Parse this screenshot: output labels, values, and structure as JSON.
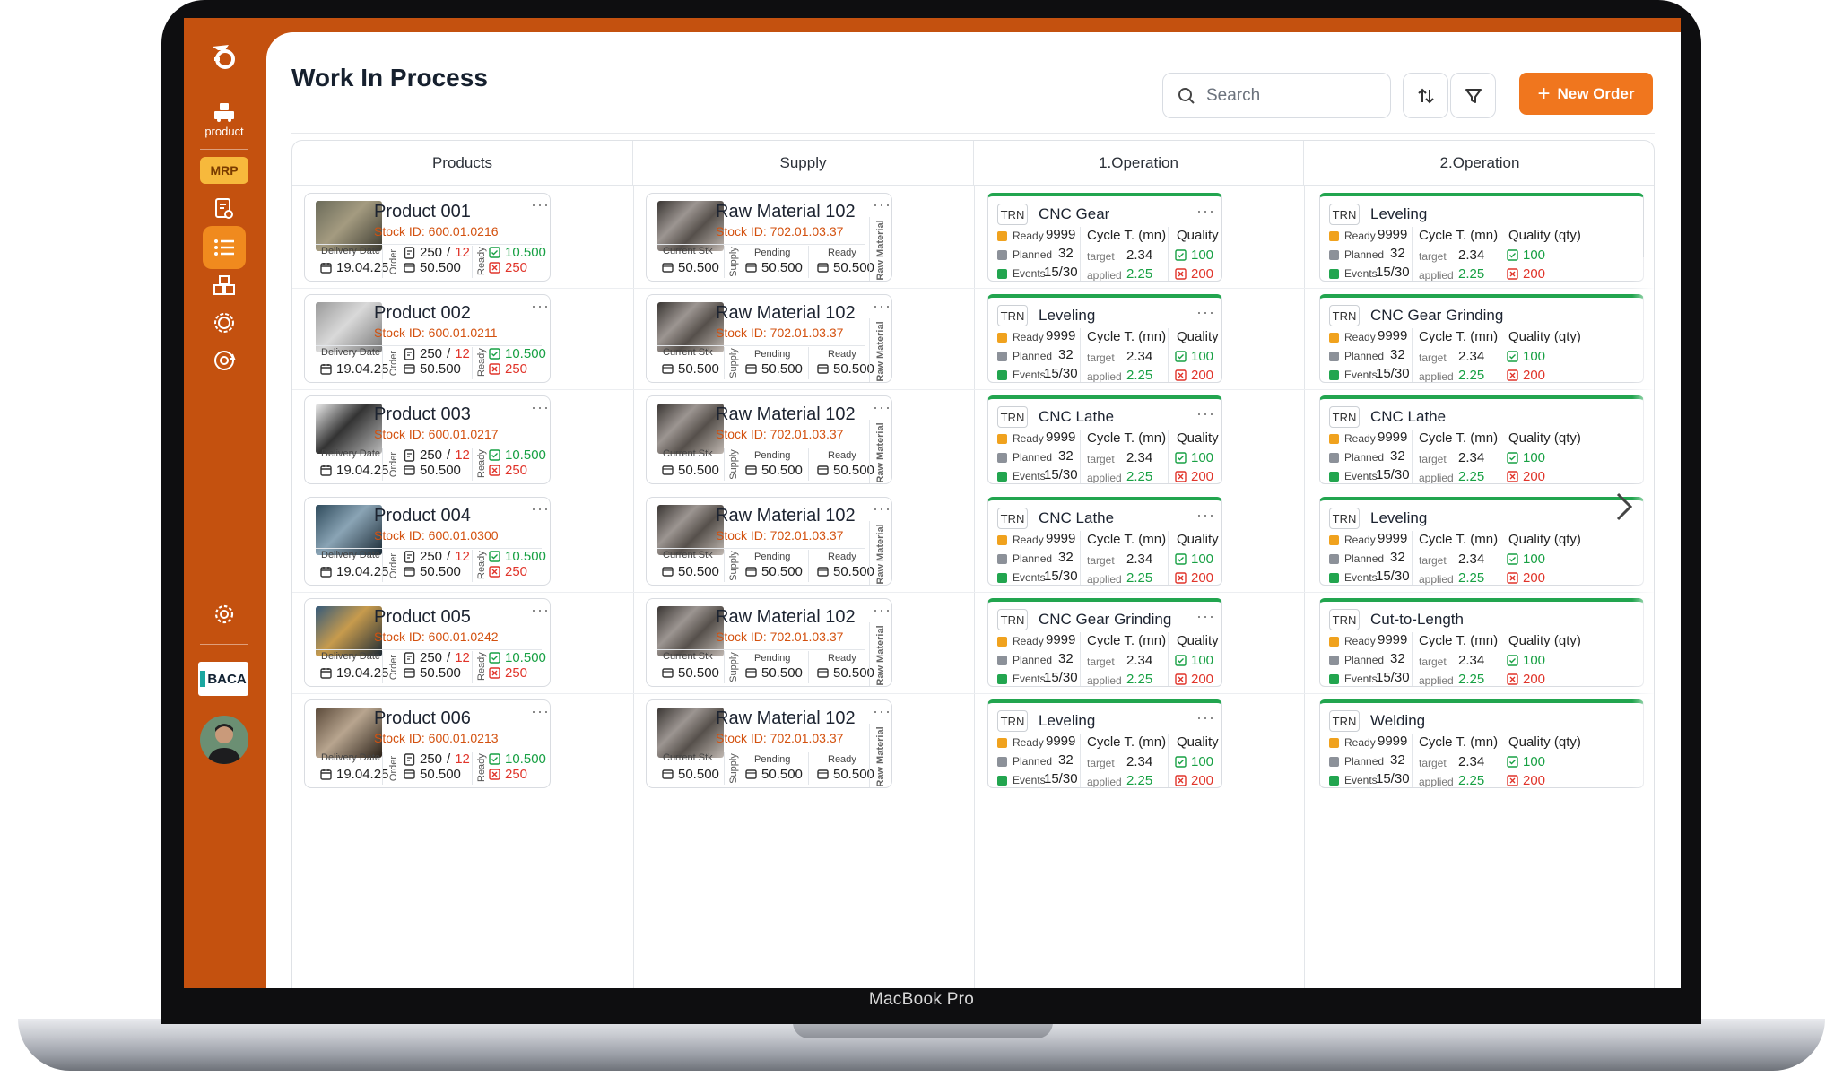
{
  "device_label": "MacBook Pro",
  "page": {
    "title": "Work In Process"
  },
  "search": {
    "placeholder": "Search"
  },
  "toolbar": {
    "new_order_label": "New Order"
  },
  "sidebar": {
    "product_label": "product",
    "mrp_label": "MRP",
    "company_logo_text": "BACA"
  },
  "columns": [
    "Products",
    "Supply",
    "1.Operation",
    "2.Operation"
  ],
  "field_labels": {
    "delivery_date": "Delivery Date",
    "order": "Order",
    "ready": "Ready",
    "current_stk": "Current Stk",
    "supply": "Supply",
    "pending": "Pending",
    "raw_material": "Raw Material",
    "trn": "TRN",
    "st_ready": "Ready",
    "st_planned": "Planned",
    "st_events": "Events",
    "cycle_t": "Cycle T. (mn)",
    "quality": "Quality (qty)",
    "target": "target",
    "applied": "applied",
    "more": "···"
  },
  "rows": [
    {
      "product": {
        "name": "Product 001",
        "stock_id": "Stock ID: 600.01.0216",
        "delivery_date": "19.04.25",
        "order_done": "250",
        "order_total": "12",
        "order_qty": "50.500",
        "ready_good": "10.500",
        "ready_bad": "250"
      },
      "supply": {
        "name": "Raw Material 102",
        "stock_id": "Stock ID: 702.01.03.37",
        "current": "50.500",
        "pending": "50.500",
        "ready": "50.500"
      },
      "ops": [
        {
          "name": "CNC Gear",
          "ready": "9999",
          "planned": "32",
          "events": "15/30",
          "target": "2.34",
          "applied": "2.25",
          "q_good": "100",
          "q_bad": "200"
        },
        {
          "name": "Leveling",
          "ready": "9999",
          "planned": "32",
          "events": "15/30",
          "target": "2.34",
          "applied": "2.25",
          "q_good": "100",
          "q_bad": "200"
        }
      ]
    },
    {
      "product": {
        "name": "Product 002",
        "stock_id": "Stock ID: 600.01.0211",
        "delivery_date": "19.04.25",
        "order_done": "250",
        "order_total": "12",
        "order_qty": "50.500",
        "ready_good": "10.500",
        "ready_bad": "250"
      },
      "supply": {
        "name": "Raw Material 102",
        "stock_id": "Stock ID: 702.01.03.37",
        "current": "50.500",
        "pending": "50.500",
        "ready": "50.500"
      },
      "ops": [
        {
          "name": "Leveling",
          "ready": "9999",
          "planned": "32",
          "events": "15/30",
          "target": "2.34",
          "applied": "2.25",
          "q_good": "100",
          "q_bad": "200"
        },
        {
          "name": "CNC Gear Grinding",
          "ready": "9999",
          "planned": "32",
          "events": "15/30",
          "target": "2.34",
          "applied": "2.25",
          "q_good": "100",
          "q_bad": "200"
        }
      ]
    },
    {
      "product": {
        "name": "Product 003",
        "stock_id": "Stock ID: 600.01.0217",
        "delivery_date": "19.04.25",
        "order_done": "250",
        "order_total": "12",
        "order_qty": "50.500",
        "ready_good": "10.500",
        "ready_bad": "250"
      },
      "supply": {
        "name": "Raw Material 102",
        "stock_id": "Stock ID: 702.01.03.37",
        "current": "50.500",
        "pending": "50.500",
        "ready": "50.500"
      },
      "ops": [
        {
          "name": "CNC Lathe",
          "ready": "9999",
          "planned": "32",
          "events": "15/30",
          "target": "2.34",
          "applied": "2.25",
          "q_good": "100",
          "q_bad": "200"
        },
        {
          "name": "CNC Lathe",
          "ready": "9999",
          "planned": "32",
          "events": "15/30",
          "target": "2.34",
          "applied": "2.25",
          "q_good": "100",
          "q_bad": "200"
        }
      ]
    },
    {
      "product": {
        "name": "Product 004",
        "stock_id": "Stock ID: 600.01.0300",
        "delivery_date": "19.04.25",
        "order_done": "250",
        "order_total": "12",
        "order_qty": "50.500",
        "ready_good": "10.500",
        "ready_bad": "250"
      },
      "supply": {
        "name": "Raw Material 102",
        "stock_id": "Stock ID: 702.01.03.37",
        "current": "50.500",
        "pending": "50.500",
        "ready": "50.500"
      },
      "ops": [
        {
          "name": "CNC Lathe",
          "ready": "9999",
          "planned": "32",
          "events": "15/30",
          "target": "2.34",
          "applied": "2.25",
          "q_good": "100",
          "q_bad": "200"
        },
        {
          "name": "Leveling",
          "ready": "9999",
          "planned": "32",
          "events": "15/30",
          "target": "2.34",
          "applied": "2.25",
          "q_good": "100",
          "q_bad": "200"
        }
      ]
    },
    {
      "product": {
        "name": "Product 005",
        "stock_id": "Stock ID: 600.01.0242",
        "delivery_date": "19.04.25",
        "order_done": "250",
        "order_total": "12",
        "order_qty": "50.500",
        "ready_good": "10.500",
        "ready_bad": "250"
      },
      "supply": {
        "name": "Raw Material 102",
        "stock_id": "Stock ID: 702.01.03.37",
        "current": "50.500",
        "pending": "50.500",
        "ready": "50.500"
      },
      "ops": [
        {
          "name": "CNC Gear Grinding",
          "ready": "9999",
          "planned": "32",
          "events": "15/30",
          "target": "2.34",
          "applied": "2.25",
          "q_good": "100",
          "q_bad": "200"
        },
        {
          "name": "Cut-to-Length",
          "ready": "9999",
          "planned": "32",
          "events": "15/30",
          "target": "2.34",
          "applied": "2.25",
          "q_good": "100",
          "q_bad": "200"
        }
      ]
    },
    {
      "product": {
        "name": "Product 006",
        "stock_id": "Stock ID: 600.01.0213",
        "delivery_date": "19.04.25",
        "order_done": "250",
        "order_total": "12",
        "order_qty": "50.500",
        "ready_good": "10.500",
        "ready_bad": "250"
      },
      "supply": {
        "name": "Raw Material 102",
        "stock_id": "Stock ID: 702.01.03.37",
        "current": "50.500",
        "pending": "50.500",
        "ready": "50.500"
      },
      "ops": [
        {
          "name": "Leveling",
          "ready": "9999",
          "planned": "32",
          "events": "15/30",
          "target": "2.34",
          "applied": "2.25",
          "q_good": "100",
          "q_bad": "200"
        },
        {
          "name": "Welding",
          "ready": "9999",
          "planned": "32",
          "events": "15/30",
          "target": "2.34",
          "applied": "2.25",
          "q_good": "100",
          "q_bad": "200"
        }
      ]
    }
  ],
  "colors": {
    "brand": "#c4510f",
    "accent": "#f0761e",
    "ok": "#17a043",
    "error": "#e0342a"
  }
}
